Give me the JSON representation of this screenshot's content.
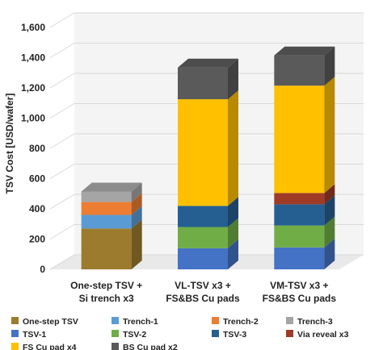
{
  "chart_data": {
    "type": "bar",
    "stacked": true,
    "ylabel": "TSV Cost [USD/wafer]",
    "ylim": [
      0,
      1600
    ],
    "yticks": [
      "0",
      "200",
      "400",
      "600",
      "800",
      "1,000",
      "1,200",
      "1,400",
      "1,600"
    ],
    "grid": true,
    "legend_position": "bottom",
    "categories": [
      [
        "One-step TSV +",
        "Si trench x3"
      ],
      [
        "VL-TSV x3 +",
        "FS&BS Cu pads"
      ],
      [
        "VM-TSV x3 +",
        "FS&BS Cu pads"
      ]
    ],
    "series": [
      {
        "name": "One-step TSV",
        "color": "#9C7A2E",
        "values": [
          270,
          0,
          0
        ]
      },
      {
        "name": "Trench-1",
        "color": "#5B9BD5",
        "values": [
          90,
          0,
          0
        ]
      },
      {
        "name": "Trench-2",
        "color": "#ED7D31",
        "values": [
          85,
          0,
          0
        ]
      },
      {
        "name": "Trench-3",
        "color": "#A5A5A5",
        "values": [
          70,
          0,
          0
        ]
      },
      {
        "name": "TSV-1",
        "color": "#4472C4",
        "values": [
          0,
          140,
          145
        ]
      },
      {
        "name": "TSV-2",
        "color": "#70AD47",
        "values": [
          0,
          140,
          145
        ]
      },
      {
        "name": "TSV-3",
        "color": "#255E91",
        "values": [
          0,
          140,
          140
        ]
      },
      {
        "name": "Via reveal x3",
        "color": "#9E3A26",
        "values": [
          0,
          0,
          75
        ]
      },
      {
        "name": "FS Cu pad x4",
        "color": "#FFC000",
        "values": [
          0,
          705,
          710
        ]
      },
      {
        "name": "BS Cu pad x2",
        "color": "#5A5A5A",
        "values": [
          0,
          210,
          200
        ]
      }
    ]
  }
}
